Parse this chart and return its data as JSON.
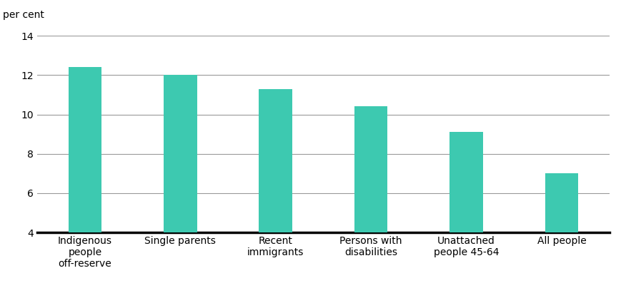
{
  "categories": [
    "Indigenous\npeople\noff-reserve",
    "Single parents",
    "Recent\nimmigrants",
    "Persons with\ndisabilities",
    "Unattached\npeople 45-64",
    "All people"
  ],
  "values": [
    12.4,
    12.0,
    11.3,
    10.4,
    9.1,
    7.0
  ],
  "bar_color": "#3DC9B0",
  "ylim": [
    4,
    14
  ],
  "yticks": [
    4,
    6,
    8,
    10,
    12,
    14
  ],
  "ylabel": "per cent",
  "background_color": "#ffffff",
  "grid_color": "#999999",
  "bar_width": 0.35,
  "axis_label_fontsize": 9.5,
  "tick_label_fontsize": 10,
  "ylabel_fontsize": 10
}
